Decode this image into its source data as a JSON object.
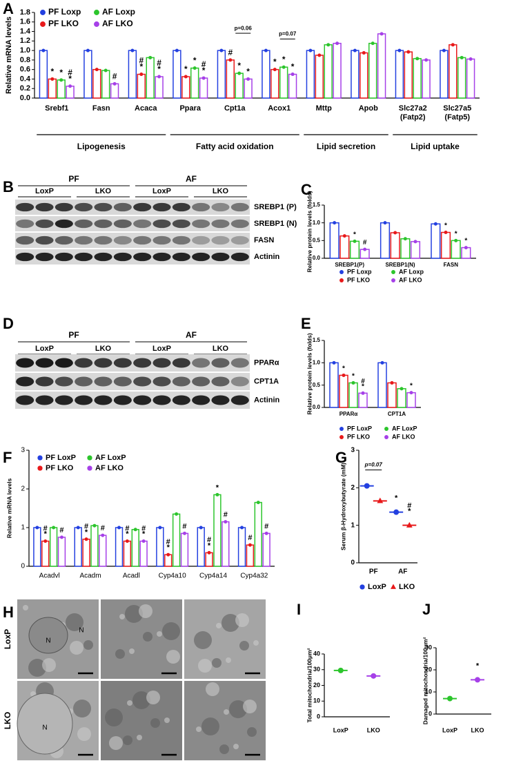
{
  "panel_labels": [
    "A",
    "B",
    "C",
    "D",
    "E",
    "F",
    "G",
    "H",
    "I",
    "J"
  ],
  "chart_data": [
    {
      "type": "bar",
      "ylabel": "Relative mRNA levels",
      "categories": [
        "Srebf1",
        "Fasn",
        "Acaca",
        "Ppara",
        "Cpt1a",
        "Acox1",
        "Mttp",
        "Apob",
        "Slc27a2 (Fatp2)",
        "Slc27a5 (Fatp5)"
      ],
      "groups": [
        "Lipogenesis",
        "Fatty acid oxidation",
        "Lipid secretion",
        "Lipid uptake"
      ],
      "annotations": [
        "p=0.06",
        "p=0.07"
      ],
      "ylim": [
        0,
        1.8
      ],
      "yticks": [
        {
          "value": 0,
          "label": "0.0"
        },
        0.2,
        0.4,
        0.6,
        0.8,
        {
          "value": 1,
          "label": "1.0"
        },
        1.2,
        1.4,
        1.6,
        1.8
      ],
      "series": [
        {
          "name": "PF Loxp",
          "color": "#2340e0",
          "values": [
            1.0,
            1.0,
            1.0,
            1.0,
            1.0,
            1.0,
            1.0,
            1.0,
            1.0,
            1.0
          ],
          "marks": [
            null,
            null,
            null,
            null,
            null,
            null,
            null,
            null,
            null,
            null
          ]
        },
        {
          "name": "PF LKO",
          "color": "#e8191a",
          "values": [
            0.4,
            0.6,
            0.5,
            0.45,
            0.8,
            0.6,
            0.9,
            0.95,
            0.97,
            1.12
          ],
          "marks": [
            "*",
            null,
            "#*",
            "*",
            "#",
            "*",
            null,
            null,
            null,
            null
          ]
        },
        {
          "name": "AF Loxp",
          "color": "#2cc52c",
          "values": [
            0.38,
            0.58,
            0.85,
            0.63,
            0.52,
            0.65,
            1.12,
            1.15,
            0.83,
            0.85
          ],
          "marks": [
            "*",
            null,
            null,
            "*",
            "*",
            "*",
            null,
            null,
            null,
            null
          ]
        },
        {
          "name": "AF LKO",
          "color": "#a640e8",
          "values": [
            0.25,
            0.3,
            0.45,
            0.42,
            0.4,
            0.5,
            1.15,
            1.35,
            0.8,
            0.82
          ],
          "marks": [
            "#*",
            "#",
            "#*",
            "#*",
            "*",
            "*",
            null,
            null,
            null,
            null
          ]
        }
      ]
    },
    {
      "type": "bar",
      "ylabel": "Relative protein levels (folds)",
      "categories": [
        "SREBP1(P)",
        "SREBP1(N)",
        "FASN"
      ],
      "ylim": [
        0,
        1.5
      ],
      "yticks": [
        {
          "value": 0,
          "label": "0.0"
        },
        0.5,
        {
          "value": 1,
          "label": "1.0"
        },
        1.5
      ],
      "series": [
        {
          "name": "PF Loxp",
          "color": "#2340e0",
          "values": [
            1.0,
            1.0,
            0.97
          ],
          "marks": [
            null,
            null,
            null
          ]
        },
        {
          "name": "PF LKO",
          "color": "#e8191a",
          "values": [
            0.63,
            0.72,
            0.73
          ],
          "marks": [
            null,
            null,
            "*"
          ]
        },
        {
          "name": "AF Loxp",
          "color": "#2cc52c",
          "values": [
            0.48,
            0.55,
            0.5
          ],
          "marks": [
            "*",
            null,
            "*"
          ]
        },
        {
          "name": "AF LKO",
          "color": "#a640e8",
          "values": [
            0.25,
            0.47,
            0.3
          ],
          "marks": [
            "#",
            null,
            "*"
          ]
        }
      ]
    },
    {
      "type": "bar",
      "ylabel": "Relative protein levels (folds)",
      "categories": [
        "PPARα",
        "CPT1A"
      ],
      "ylim": [
        0,
        1.5
      ],
      "yticks": [
        {
          "value": 0,
          "label": "0.0"
        },
        0.5,
        {
          "value": 1,
          "label": "1.0"
        },
        1.5
      ],
      "series": [
        {
          "name": "PF LoxP",
          "color": "#2340e0",
          "values": [
            1.0,
            1.0
          ],
          "marks": [
            null,
            null
          ]
        },
        {
          "name": "PF LKO",
          "color": "#e8191a",
          "values": [
            0.72,
            0.55
          ],
          "marks": [
            "*",
            null
          ]
        },
        {
          "name": "AF LoxP",
          "color": "#2cc52c",
          "values": [
            0.55,
            0.42
          ],
          "marks": [
            "*",
            null
          ]
        },
        {
          "name": "AF LKO",
          "color": "#a640e8",
          "values": [
            0.32,
            0.33
          ],
          "marks": [
            "#*",
            "*"
          ]
        }
      ]
    },
    {
      "type": "bar",
      "ylabel": "Relative mRNA levels",
      "categories": [
        "Acadvl",
        "Acadm",
        "Acadl",
        "Cyp4a10",
        "Cyp4a14",
        "Cyp4a32"
      ],
      "ylim": [
        0,
        3
      ],
      "yticks": [
        0,
        1,
        2,
        3
      ],
      "series": [
        {
          "name": "PF LoxP",
          "color": "#2340e0",
          "values": [
            1.0,
            1.0,
            1.0,
            1.0,
            1.0,
            1.0
          ],
          "marks": [
            null,
            null,
            null,
            null,
            null,
            null
          ]
        },
        {
          "name": "PF LKO",
          "color": "#e8191a",
          "values": [
            0.65,
            0.7,
            0.65,
            0.3,
            0.35,
            0.55
          ],
          "marks": [
            "#*",
            "#*",
            "#*",
            "#*",
            "#*",
            "#"
          ]
        },
        {
          "name": "AF LoxP",
          "color": "#2cc52c",
          "values": [
            1.0,
            1.05,
            0.95,
            1.35,
            1.85,
            1.65
          ],
          "marks": [
            null,
            null,
            null,
            null,
            "*",
            null
          ]
        },
        {
          "name": "AF LKO",
          "color": "#a640e8",
          "values": [
            0.75,
            0.8,
            0.65,
            0.85,
            1.15,
            0.85
          ],
          "marks": [
            "#",
            "#",
            "#*",
            "#",
            "#",
            "#"
          ]
        }
      ]
    },
    {
      "type": "dot",
      "ylabel": "Serum β-Hydroxybutyrate (mM)",
      "categories": [
        "PF",
        "AF"
      ],
      "annotations": [
        "p=0.07"
      ],
      "ylim": [
        0,
        3
      ],
      "yticks": [
        0,
        1,
        2,
        3
      ],
      "series": [
        {
          "name": "LoxP",
          "color": "#2340e0",
          "marker": "circle",
          "values": [
            2.05,
            1.35
          ],
          "marks": [
            null,
            "*"
          ]
        },
        {
          "name": "LKO",
          "color": "#e8191a",
          "marker": "triangle",
          "values": [
            1.65,
            1.0
          ],
          "marks": [
            null,
            "#*"
          ]
        }
      ]
    },
    {
      "type": "dot",
      "ylabel": "Total mitochondria/100μm²",
      "categories": [
        "LoxP",
        "LKO"
      ],
      "ylim": [
        0,
        40
      ],
      "yticks": [
        0,
        10,
        20,
        30,
        40
      ],
      "series": [
        {
          "colors": [
            "#2cc52c",
            "#a640e8"
          ],
          "marker": "circle",
          "values": [
            29.5,
            26
          ],
          "marks": [
            null,
            null
          ]
        }
      ]
    },
    {
      "type": "dot",
      "ylabel": "Damaged mitochondria/100μm²",
      "categories": [
        "LoxP",
        "LKO"
      ],
      "ylim": [
        0,
        30
      ],
      "yticks": [
        0,
        10,
        20,
        30
      ],
      "series": [
        {
          "colors": [
            "#2cc52c",
            "#a640e8"
          ],
          "marker": "circle",
          "values": [
            7,
            15.5
          ],
          "marks": [
            null,
            "*"
          ]
        }
      ]
    }
  ],
  "blots": [
    {
      "groups": [
        "PF",
        "AF"
      ],
      "subgroups": [
        "LoxP",
        "LKO",
        "LoxP",
        "LKO"
      ],
      "rows": [
        "SREBP1 (P)",
        "SREBP1 (N)",
        "FASN",
        "Actinin"
      ]
    },
    {
      "groups": [
        "PF",
        "AF"
      ],
      "subgroups": [
        "LoxP",
        "LKO",
        "LoxP",
        "LKO"
      ],
      "rows": [
        "PPARα",
        "CPT1A",
        "Actinin"
      ]
    }
  ],
  "micrographs": {
    "rows": [
      "LoxP",
      "LKO"
    ],
    "nucleus_label": "N"
  }
}
